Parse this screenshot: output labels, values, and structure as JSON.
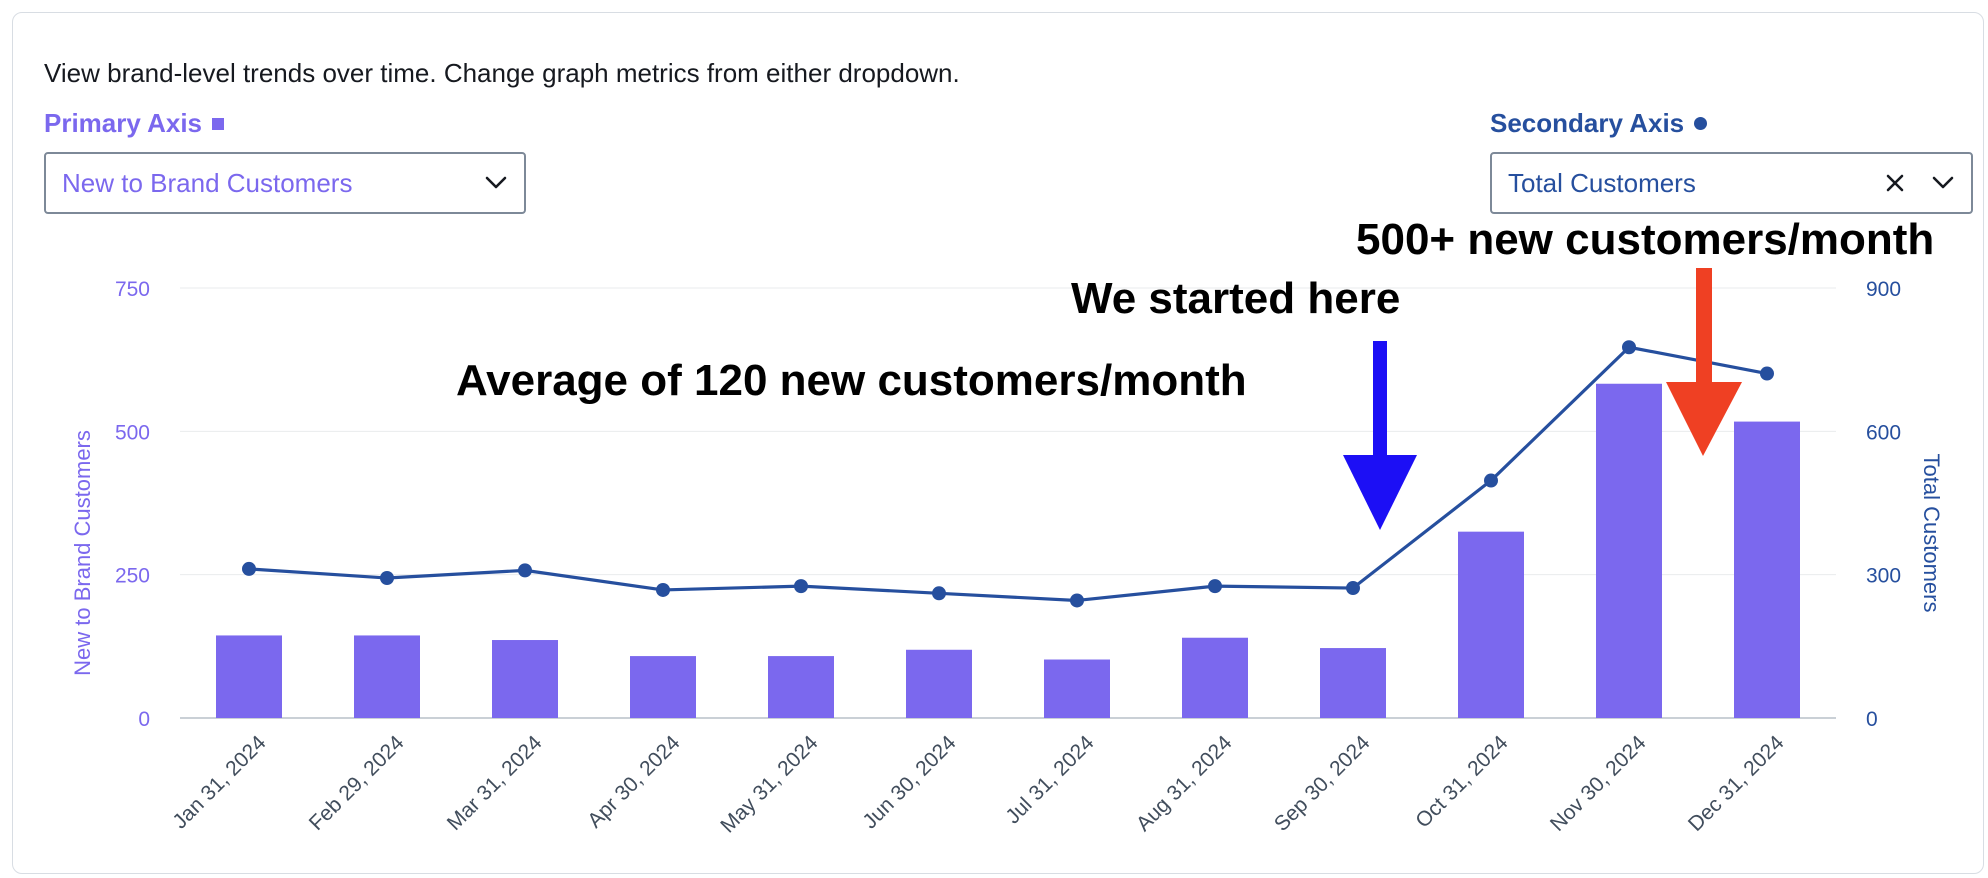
{
  "description": "View brand-level trends over time. Change graph metrics from either dropdown.",
  "primary_axis": {
    "label": "Primary Axis",
    "selected": "New to Brand Customers"
  },
  "secondary_axis": {
    "label": "Secondary Axis",
    "selected": "Total Customers"
  },
  "colors": {
    "bar": "#7b68ee",
    "line": "#264f9e",
    "arrow_blue": "#1c0ff5",
    "arrow_red": "#ef4023"
  },
  "annotations": {
    "average": "Average of 120 new customers/month",
    "started": "We started here",
    "growth": "500+ new customers/month"
  },
  "chart_data": {
    "type": "bar",
    "categories": [
      "Jan 31, 2024",
      "Feb 29, 2024",
      "Mar 31, 2024",
      "Apr 30, 2024",
      "May 31, 2024",
      "Jun 30, 2024",
      "Jul 31, 2024",
      "Aug 31, 2024",
      "Sep 30, 2024",
      "Oct 31, 2024",
      "Nov 30, 2024",
      "Dec 31, 2024"
    ],
    "series": [
      {
        "name": "New to Brand Customers",
        "type": "bar",
        "axis": "left",
        "values": [
          144,
          144,
          136,
          108,
          108,
          119,
          102,
          140,
          122,
          325,
          583,
          517
        ]
      },
      {
        "name": "Total Customers",
        "type": "line",
        "axis": "right",
        "values": [
          312,
          293,
          309,
          268,
          276,
          261,
          246,
          276,
          272,
          497,
          776,
          721
        ]
      }
    ],
    "ylabel": "New to Brand Customers",
    "y2label": "Total Customers",
    "ylim": [
      0,
      750
    ],
    "y2lim": [
      0,
      900
    ],
    "yticks": [
      0,
      250,
      500,
      750
    ],
    "y2ticks": [
      0,
      300,
      600,
      900
    ],
    "yticklabels": [
      "0",
      "250",
      "500",
      "750"
    ],
    "y2ticklabels": [
      "0",
      "300",
      "600",
      "900"
    ],
    "grid": true
  }
}
